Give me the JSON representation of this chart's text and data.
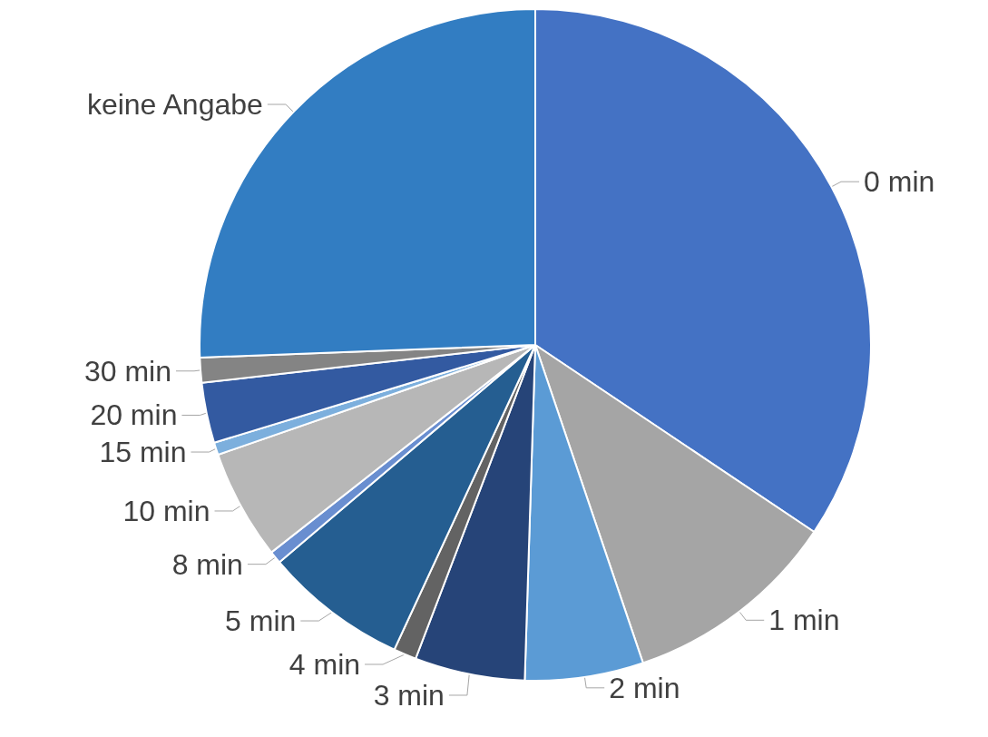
{
  "chart_data": {
    "type": "pie",
    "categories": [
      "0 min",
      "1 min",
      "2 min",
      "3 min",
      "4 min",
      "5 min",
      "8 min",
      "10 min",
      "15 min",
      "20 min",
      "30 min",
      "keine Angabe"
    ],
    "values": [
      34.4,
      10.4,
      5.7,
      5.3,
      1.1,
      6.9,
      0.6,
      5.3,
      0.6,
      2.9,
      1.2,
      25.6
    ],
    "colors": [
      "#4472c4",
      "#a5a5a5",
      "#5b9bd5",
      "#264478",
      "#636363",
      "#255e91",
      "#698ed0",
      "#b7b7b7",
      "#7cafdd",
      "#335aa1",
      "#848484",
      "#327dc2"
    ],
    "legend": false
  }
}
